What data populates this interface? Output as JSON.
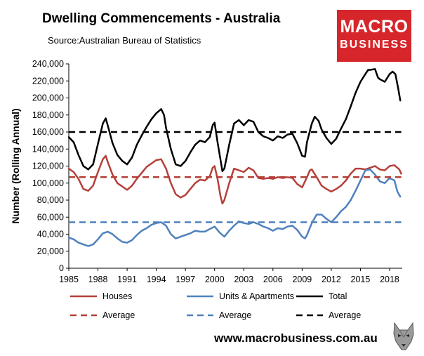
{
  "header": {
    "title": "Dwelling Commencements - Australia",
    "source": "Source:Australian Bureau of Statistics"
  },
  "logo": {
    "line1": "MACRO",
    "line2": "BUSINESS",
    "color": "#d7262b"
  },
  "footer": {
    "url": "www.macrobusiness.com.au"
  },
  "colors": {
    "houses": "#b5403a",
    "units": "#4f81bd",
    "total": "#000000"
  },
  "chart_data": {
    "type": "line",
    "ylabel": "Number (Rolling Annual)",
    "xlabel": "",
    "ylim": [
      0,
      240000
    ],
    "xlim": [
      1985,
      2019.3
    ],
    "y_ticks": [
      "0",
      "20,000",
      "40,000",
      "60,000",
      "80,000",
      "100,000",
      "120,000",
      "140,000",
      "160,000",
      "180,000",
      "200,000",
      "220,000",
      "240,000"
    ],
    "x_ticks": [
      "1985",
      "1988",
      "1991",
      "1994",
      "1997",
      "2000",
      "2003",
      "2006",
      "2009",
      "2012",
      "2015",
      "2018"
    ],
    "grid": false,
    "legend_position": "bottom",
    "series": [
      {
        "name": "Houses",
        "key": "houses",
        "style": "solid",
        "points": [
          [
            1985,
            117000
          ],
          [
            1985.5,
            113000
          ],
          [
            1986,
            105000
          ],
          [
            1986.5,
            93000
          ],
          [
            1987,
            91000
          ],
          [
            1987.5,
            97000
          ],
          [
            1988,
            113000
          ],
          [
            1988.5,
            128000
          ],
          [
            1988.8,
            132000
          ],
          [
            1989,
            125000
          ],
          [
            1989.5,
            110000
          ],
          [
            1990,
            100000
          ],
          [
            1990.5,
            96000
          ],
          [
            1991,
            92000
          ],
          [
            1991.5,
            97000
          ],
          [
            1992,
            105000
          ],
          [
            1992.5,
            112000
          ],
          [
            1993,
            119000
          ],
          [
            1993.5,
            123000
          ],
          [
            1994,
            127000
          ],
          [
            1994.5,
            128000
          ],
          [
            1995,
            117000
          ],
          [
            1995.5,
            100000
          ],
          [
            1996,
            87000
          ],
          [
            1996.5,
            83000
          ],
          [
            1997,
            86000
          ],
          [
            1997.5,
            93000
          ],
          [
            1998,
            100000
          ],
          [
            1998.5,
            104000
          ],
          [
            1999,
            103000
          ],
          [
            1999.5,
            108000
          ],
          [
            1999.8,
            118000
          ],
          [
            2000,
            120000
          ],
          [
            2000.3,
            105000
          ],
          [
            2000.6,
            85000
          ],
          [
            2000.8,
            76000
          ],
          [
            2001,
            80000
          ],
          [
            2001.5,
            100000
          ],
          [
            2002,
            117000
          ],
          [
            2002.5,
            115000
          ],
          [
            2003,
            113000
          ],
          [
            2003.5,
            118000
          ],
          [
            2004,
            115000
          ],
          [
            2004.5,
            106000
          ],
          [
            2005,
            105000
          ],
          [
            2005.5,
            106000
          ],
          [
            2006,
            105000
          ],
          [
            2006.5,
            107000
          ],
          [
            2007,
            106000
          ],
          [
            2007.5,
            107000
          ],
          [
            2008,
            106000
          ],
          [
            2008.5,
            99000
          ],
          [
            2009,
            95000
          ],
          [
            2009.5,
            107000
          ],
          [
            2009.8,
            115000
          ],
          [
            2010,
            116000
          ],
          [
            2010.5,
            107000
          ],
          [
            2011,
            97000
          ],
          [
            2011.5,
            93000
          ],
          [
            2012,
            90000
          ],
          [
            2012.5,
            93000
          ],
          [
            2013,
            97000
          ],
          [
            2013.5,
            103000
          ],
          [
            2014,
            111000
          ],
          [
            2014.5,
            117000
          ],
          [
            2015,
            117000
          ],
          [
            2015.5,
            116000
          ],
          [
            2016,
            118000
          ],
          [
            2016.5,
            120000
          ],
          [
            2017,
            116000
          ],
          [
            2017.5,
            115000
          ],
          [
            2018,
            120000
          ],
          [
            2018.5,
            121000
          ],
          [
            2019,
            116000
          ],
          [
            2019.2,
            111000
          ]
        ]
      },
      {
        "name": "Units & Apartments",
        "key": "units",
        "style": "solid",
        "points": [
          [
            1985,
            36000
          ],
          [
            1985.5,
            34000
          ],
          [
            1986,
            30000
          ],
          [
            1986.5,
            28000
          ],
          [
            1987,
            26000
          ],
          [
            1987.5,
            28000
          ],
          [
            1988,
            34000
          ],
          [
            1988.5,
            41000
          ],
          [
            1989,
            43000
          ],
          [
            1989.5,
            40000
          ],
          [
            1990,
            35000
          ],
          [
            1990.5,
            31000
          ],
          [
            1991,
            30000
          ],
          [
            1991.5,
            33000
          ],
          [
            1992,
            39000
          ],
          [
            1992.5,
            44000
          ],
          [
            1993,
            47000
          ],
          [
            1993.5,
            51000
          ],
          [
            1994,
            53000
          ],
          [
            1994.5,
            54000
          ],
          [
            1995,
            50000
          ],
          [
            1995.5,
            40000
          ],
          [
            1996,
            35000
          ],
          [
            1996.5,
            37000
          ],
          [
            1997,
            39000
          ],
          [
            1997.5,
            41000
          ],
          [
            1998,
            44000
          ],
          [
            1998.5,
            43000
          ],
          [
            1999,
            43000
          ],
          [
            1999.5,
            46000
          ],
          [
            2000,
            49000
          ],
          [
            2000.5,
            42000
          ],
          [
            2001,
            37000
          ],
          [
            2001.5,
            44000
          ],
          [
            2002,
            50000
          ],
          [
            2002.5,
            55000
          ],
          [
            2003,
            53000
          ],
          [
            2003.5,
            52000
          ],
          [
            2004,
            54000
          ],
          [
            2004.5,
            52000
          ],
          [
            2005,
            49000
          ],
          [
            2005.5,
            47000
          ],
          [
            2006,
            44000
          ],
          [
            2006.5,
            47000
          ],
          [
            2007,
            46000
          ],
          [
            2007.5,
            49000
          ],
          [
            2008,
            50000
          ],
          [
            2008.5,
            45000
          ],
          [
            2009,
            37000
          ],
          [
            2009.3,
            35000
          ],
          [
            2009.5,
            39000
          ],
          [
            2010,
            53000
          ],
          [
            2010.5,
            63000
          ],
          [
            2011,
            63000
          ],
          [
            2011.5,
            58000
          ],
          [
            2012,
            54000
          ],
          [
            2012.5,
            60000
          ],
          [
            2013,
            67000
          ],
          [
            2013.5,
            72000
          ],
          [
            2014,
            80000
          ],
          [
            2014.5,
            91000
          ],
          [
            2015,
            103000
          ],
          [
            2015.5,
            115000
          ],
          [
            2016,
            116000
          ],
          [
            2016.5,
            110000
          ],
          [
            2017,
            102000
          ],
          [
            2017.5,
            100000
          ],
          [
            2018,
            106000
          ],
          [
            2018.5,
            103000
          ],
          [
            2018.8,
            90000
          ],
          [
            2019.1,
            84000
          ]
        ]
      },
      {
        "name": "Total",
        "key": "total",
        "style": "solid",
        "points": [
          [
            1985,
            154000
          ],
          [
            1985.5,
            148000
          ],
          [
            1986,
            133000
          ],
          [
            1986.5,
            120000
          ],
          [
            1987,
            116000
          ],
          [
            1987.5,
            122000
          ],
          [
            1988,
            146000
          ],
          [
            1988.5,
            170000
          ],
          [
            1988.8,
            176000
          ],
          [
            1989,
            168000
          ],
          [
            1989.5,
            147000
          ],
          [
            1990,
            133000
          ],
          [
            1990.5,
            126000
          ],
          [
            1991,
            122000
          ],
          [
            1991.5,
            130000
          ],
          [
            1992,
            145000
          ],
          [
            1992.5,
            156000
          ],
          [
            1993,
            166000
          ],
          [
            1993.5,
            175000
          ],
          [
            1994,
            182000
          ],
          [
            1994.5,
            187000
          ],
          [
            1994.8,
            180000
          ],
          [
            1995,
            165000
          ],
          [
            1995.5,
            140000
          ],
          [
            1996,
            122000
          ],
          [
            1996.5,
            120000
          ],
          [
            1997,
            126000
          ],
          [
            1997.5,
            136000
          ],
          [
            1998,
            145000
          ],
          [
            1998.5,
            150000
          ],
          [
            1999,
            148000
          ],
          [
            1999.5,
            154000
          ],
          [
            1999.8,
            168000
          ],
          [
            2000,
            171000
          ],
          [
            2000.3,
            148000
          ],
          [
            2000.6,
            128000
          ],
          [
            2000.8,
            114000
          ],
          [
            2001,
            117000
          ],
          [
            2001.5,
            145000
          ],
          [
            2002,
            170000
          ],
          [
            2002.5,
            174000
          ],
          [
            2003,
            168000
          ],
          [
            2003.5,
            174000
          ],
          [
            2004,
            172000
          ],
          [
            2004.5,
            160000
          ],
          [
            2005,
            155000
          ],
          [
            2005.5,
            153000
          ],
          [
            2006,
            150000
          ],
          [
            2006.5,
            155000
          ],
          [
            2007,
            153000
          ],
          [
            2007.5,
            157000
          ],
          [
            2008,
            158000
          ],
          [
            2008.5,
            147000
          ],
          [
            2009,
            132000
          ],
          [
            2009.3,
            131000
          ],
          [
            2009.5,
            148000
          ],
          [
            2010,
            170000
          ],
          [
            2010.3,
            178000
          ],
          [
            2010.7,
            173000
          ],
          [
            2011,
            163000
          ],
          [
            2011.5,
            153000
          ],
          [
            2012,
            146000
          ],
          [
            2012.5,
            152000
          ],
          [
            2013,
            164000
          ],
          [
            2013.5,
            175000
          ],
          [
            2014,
            190000
          ],
          [
            2014.5,
            206000
          ],
          [
            2015,
            219000
          ],
          [
            2015.5,
            228000
          ],
          [
            2015.8,
            233000
          ],
          [
            2016,
            233000
          ],
          [
            2016.5,
            234000
          ],
          [
            2016.8,
            224000
          ],
          [
            2017,
            222000
          ],
          [
            2017.5,
            219000
          ],
          [
            2018,
            228000
          ],
          [
            2018.3,
            231000
          ],
          [
            2018.6,
            228000
          ],
          [
            2018.9,
            210000
          ],
          [
            2019.1,
            197000
          ]
        ]
      },
      {
        "name": "Average",
        "key": "houses",
        "style": "dashed",
        "points": [
          [
            1985,
            107000
          ],
          [
            2019.2,
            107000
          ]
        ]
      },
      {
        "name": "Average",
        "key": "units",
        "style": "dashed",
        "points": [
          [
            1985,
            54000
          ],
          [
            2019.2,
            54000
          ]
        ]
      },
      {
        "name": "Average",
        "key": "total",
        "style": "dashed",
        "points": [
          [
            1985,
            160000
          ],
          [
            2019.2,
            160000
          ]
        ]
      }
    ]
  }
}
